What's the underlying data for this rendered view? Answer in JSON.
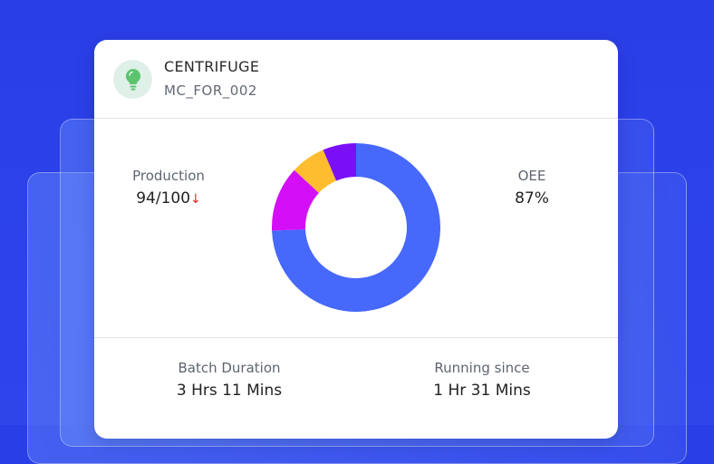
{
  "machine": {
    "name": "CENTRIFUGE",
    "code": "MC_FOR_002",
    "icon": "lightbulb-icon",
    "icon_color": "#5cc46e"
  },
  "production": {
    "label": "Production",
    "value": "94/100",
    "trend": "↓",
    "trend_color": "#e82020"
  },
  "oee": {
    "label": "OEE",
    "value": "87%"
  },
  "batch": {
    "label": "Batch Duration",
    "value": "3 Hrs 11 Mins"
  },
  "running": {
    "label": "Running since",
    "value": "1 Hr 31 Mins"
  },
  "chart_data": {
    "type": "pie",
    "donut": true,
    "values": [
      0.744,
      0.125,
      0.067,
      0.064
    ],
    "colors": [
      "#4668fb",
      "#d40ff7",
      "#fdbd2f",
      "#7a0ff5"
    ]
  }
}
